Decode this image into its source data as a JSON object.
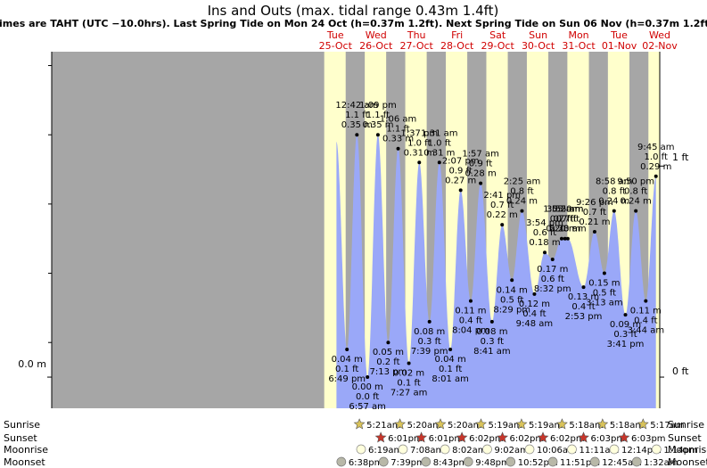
{
  "header": {
    "title": "Ins and Outs (max. tidal range 0.43m 1.4ft)",
    "subtitle": "Times are TAHT (UTC −10.0hrs). Last Spring Tide on Mon 24 Oct (h=0.37m 1.2ft). Next Spring Tide on Sun 06 Nov (h=0.37m 1.2ft)"
  },
  "days": [
    {
      "dow": "Tue",
      "date": "25-Oct"
    },
    {
      "dow": "Wed",
      "date": "26-Oct"
    },
    {
      "dow": "Thu",
      "date": "27-Oct"
    },
    {
      "dow": "Fri",
      "date": "28-Oct"
    },
    {
      "dow": "Sat",
      "date": "29-Oct"
    },
    {
      "dow": "Sun",
      "date": "30-Oct"
    },
    {
      "dow": "Mon",
      "date": "31-Oct"
    },
    {
      "dow": "Tue",
      "date": "01-Nov"
    },
    {
      "dow": "Wed",
      "date": "02-Nov"
    }
  ],
  "axes": {
    "left_tick": "0.0 m",
    "right_ticks": [
      "0 ft",
      "1 ft"
    ]
  },
  "row_labels": {
    "sunrise": "Sunrise",
    "sunset": "Sunset",
    "moonrise": "Moonrise",
    "moonset": "Moonset"
  },
  "colors": {
    "night": "#a6a6a6",
    "day": "#ffffcc",
    "water": "#9aa8f8",
    "day_text": "#d00000",
    "sun_star": "#d9c35a",
    "sunset_star": "#c8352a",
    "moonrise_fill": "#ffffdd",
    "moonset_fill": "#b8b8a8"
  },
  "chart_data": {
    "type": "area",
    "y_unit": "m",
    "ylim_m": [
      -0.045,
      0.47
    ],
    "y_ticks_m": [
      0.0
    ],
    "y_ticks_ft": [
      0,
      1
    ],
    "x_start": "2022-10-25",
    "x_unit": "days",
    "points": [
      {
        "day": "2022-10-25",
        "time": "6:49 pm",
        "m": 0.04,
        "h": 18.82,
        "labels": [
          "0.04 m",
          "0.1 ft",
          "6:49 pm"
        ]
      },
      {
        "day": "2022-10-26",
        "time": "12:42 am",
        "m": 0.35,
        "h": 0.7,
        "labels": [
          "12:42 am",
          "1.1 ft",
          "0.35 m"
        ]
      },
      {
        "day": "2022-10-26",
        "time": "6:57 am",
        "m": 0.0,
        "h": 6.95,
        "labels": [
          "0.00 m",
          "0.0 ft",
          "6:57 am"
        ]
      },
      {
        "day": "2022-10-26",
        "time": "1:09 pm",
        "m": 0.35,
        "h": 13.15,
        "labels": [
          "1:09 pm",
          "1.1 ft",
          "0.35 m"
        ]
      },
      {
        "day": "2022-10-26",
        "time": "7:13 pm",
        "m": 0.05,
        "h": 19.22,
        "labels": [
          "0.05 m",
          "0.2 ft",
          "7:13 pm"
        ]
      },
      {
        "day": "2022-10-27",
        "time": "1:06 am",
        "m": 0.33,
        "h": 1.1,
        "labels": [
          "1:06 am",
          "1.1 ft",
          "0.33 m"
        ]
      },
      {
        "day": "2022-10-27",
        "time": "7:27 am",
        "m": 0.02,
        "h": 7.45,
        "labels": [
          "0.02 m",
          "0.1 ft",
          "7:27 am"
        ]
      },
      {
        "day": "2022-10-27",
        "time": "1:37 pm",
        "m": 0.31,
        "h": 13.62,
        "labels": [
          "1:37 pm",
          "1.0 ft",
          "0.31 m"
        ]
      },
      {
        "day": "2022-10-27",
        "time": "7:39 pm",
        "m": 0.08,
        "h": 19.65,
        "labels": [
          "0.08 m",
          "0.3 ft",
          "7:39 pm"
        ]
      },
      {
        "day": "2022-10-28",
        "time": "1:31 am",
        "m": 0.31,
        "h": 1.52,
        "labels": [
          "1:31 am",
          "1.0 ft",
          "0.31 m"
        ]
      },
      {
        "day": "2022-10-28",
        "time": "8:01 am",
        "m": 0.04,
        "h": 8.02,
        "labels": [
          "0.04 m",
          "0.1 ft",
          "8:01 am"
        ]
      },
      {
        "day": "2022-10-28",
        "time": "2:07 pm",
        "m": 0.27,
        "h": 14.12,
        "labels": [
          "2:07 pm",
          "0.9 ft",
          "0.27 m"
        ]
      },
      {
        "day": "2022-10-28",
        "time": "8:04 pm",
        "m": 0.11,
        "h": 20.07,
        "labels": [
          "0.11 m",
          "0.4 ft",
          "8:04 pm"
        ]
      },
      {
        "day": "2022-10-29",
        "time": "1:57 am",
        "m": 0.28,
        "h": 1.95,
        "labels": [
          "1:57 am",
          "0.9 ft",
          "0.28 m"
        ]
      },
      {
        "day": "2022-10-29",
        "time": "8:41 am",
        "m": 0.08,
        "h": 8.68,
        "labels": [
          "0.08 m",
          "0.3 ft",
          "8:41 am"
        ]
      },
      {
        "day": "2022-10-29",
        "time": "2:41 pm",
        "m": 0.22,
        "h": 14.68,
        "labels": [
          "2:41 pm",
          "0.7 ft",
          "0.22 m"
        ]
      },
      {
        "day": "2022-10-29",
        "time": "8:29 pm",
        "m": 0.14,
        "h": 20.48,
        "labels": [
          "0.14 m",
          "0.5 ft",
          "8:29 pm"
        ]
      },
      {
        "day": "2022-10-30",
        "time": "2:25 am",
        "m": 0.24,
        "h": 2.42,
        "labels": [
          "2:25 am",
          "0.8 ft",
          "0.24 m"
        ]
      },
      {
        "day": "2022-10-30",
        "time": "9:48 am",
        "m": 0.12,
        "h": 9.8,
        "labels": [
          "0.12 m",
          "0.4 ft",
          "9:48 am"
        ]
      },
      {
        "day": "2022-10-30",
        "time": "3:54 pm",
        "m": 0.18,
        "h": 15.9,
        "labels": [
          "3:54 pm",
          "0.6 ft",
          "0.18 m"
        ]
      },
      {
        "day": "2022-10-30",
        "time": "8:32 pm",
        "m": 0.17,
        "h": 20.53,
        "labels": [
          "0.17 m",
          "0.6 ft",
          "8:32 pm"
        ]
      },
      {
        "day": "2022-10-31",
        "time": "1:55 am",
        "m": 0.2,
        "h": 1.92,
        "labels": [
          "1:55 am",
          "0.7 ft",
          "0.20 m"
        ]
      },
      {
        "day": "2022-10-31",
        "time": "3:55 am",
        "m": 0.2,
        "h": 3.92,
        "labels": [
          "3:55 am",
          "0.7 ft",
          "0.20 m"
        ]
      },
      {
        "day": "2022-10-31",
        "time": "5:33 am",
        "m": 0.2,
        "h": 5.55,
        "labels": [
          "0.20 m",
          "0.7 ft",
          "5:33 am"
        ]
      },
      {
        "day": "2022-10-31",
        "time": "2:53 pm",
        "m": 0.13,
        "h": 14.88,
        "labels": [
          "0.13 m",
          "0.4 ft",
          "2:53 pm"
        ]
      },
      {
        "day": "2022-10-31",
        "time": "9:26 pm",
        "m": 0.21,
        "h": 21.43,
        "labels": [
          "9:26 pm",
          "0.7 ft",
          "0.21 m"
        ]
      },
      {
        "day": "2022-11-01",
        "time": "3:13 am",
        "m": 0.15,
        "h": 3.22,
        "labels": [
          "0.15 m",
          "0.5 ft",
          "3:13 am"
        ]
      },
      {
        "day": "2022-11-01",
        "time": "8:58 am",
        "m": 0.24,
        "h": 8.97,
        "labels": [
          "8:58 am",
          "0.8 ft",
          "0.24 m"
        ]
      },
      {
        "day": "2022-11-01",
        "time": "3:41 pm",
        "m": 0.09,
        "h": 15.68,
        "labels": [
          "0.09 m",
          "0.3 ft",
          "3:41 pm"
        ]
      },
      {
        "day": "2022-11-01",
        "time": "9:50 pm",
        "m": 0.24,
        "h": 21.83,
        "labels": [
          "9:50 pm",
          "0.8 ft",
          "0.24 m"
        ]
      },
      {
        "day": "2022-11-02",
        "time": "3:44 am",
        "m": 0.11,
        "h": 3.73,
        "labels": [
          "0.11 m",
          "0.4 ft",
          "3:44 am"
        ]
      },
      {
        "day": "2022-11-02",
        "time": "9:45 am",
        "m": 0.29,
        "h": 9.75,
        "labels": [
          "9:45 am",
          "1.0 ft",
          "0.29 m"
        ]
      }
    ],
    "sunrise": [
      {
        "day": "2022-10-26",
        "h": 5.35,
        "label": "5:21am"
      },
      {
        "day": "2022-10-27",
        "h": 5.33,
        "label": "5:20am"
      },
      {
        "day": "2022-10-28",
        "h": 5.33,
        "label": "5:20am"
      },
      {
        "day": "2022-10-29",
        "h": 5.32,
        "label": "5:19am"
      },
      {
        "day": "2022-10-30",
        "h": 5.32,
        "label": "5:19am"
      },
      {
        "day": "2022-10-31",
        "h": 5.3,
        "label": "5:18am"
      },
      {
        "day": "2022-11-01",
        "h": 5.3,
        "label": "5:18am"
      },
      {
        "day": "2022-11-02",
        "h": 5.28,
        "label": "5:17am"
      }
    ],
    "sunset": [
      {
        "day": "2022-10-26",
        "h": 18.02,
        "label": "6:01pm"
      },
      {
        "day": "2022-10-27",
        "h": 18.02,
        "label": "6:01pm"
      },
      {
        "day": "2022-10-28",
        "h": 18.03,
        "label": "6:02pm"
      },
      {
        "day": "2022-10-29",
        "h": 18.03,
        "label": "6:02pm"
      },
      {
        "day": "2022-10-30",
        "h": 18.03,
        "label": "6:02pm"
      },
      {
        "day": "2022-10-31",
        "h": 18.05,
        "label": "6:03pm"
      },
      {
        "day": "2022-11-01",
        "h": 18.05,
        "label": "6:03pm"
      }
    ],
    "moonrise": [
      {
        "day": "2022-10-26",
        "h": 6.32,
        "label": "6:19am"
      },
      {
        "day": "2022-10-27",
        "h": 7.13,
        "label": "7:08am"
      },
      {
        "day": "2022-10-28",
        "h": 8.03,
        "label": "8:02am"
      },
      {
        "day": "2022-10-29",
        "h": 9.03,
        "label": "9:02am"
      },
      {
        "day": "2022-10-30",
        "h": 10.1,
        "label": "10:06am"
      },
      {
        "day": "2022-10-31",
        "h": 11.18,
        "label": "11:11am"
      },
      {
        "day": "2022-11-01",
        "h": 12.23,
        "label": "12:14pm"
      },
      {
        "day": "2022-11-02",
        "h": 13.23,
        "label": "1:14pm"
      }
    ],
    "moonset": [
      {
        "day": "2022-10-25",
        "h": 18.63,
        "label": "6:38pm"
      },
      {
        "day": "2022-10-26",
        "h": 19.65,
        "label": "7:39pm"
      },
      {
        "day": "2022-10-27",
        "h": 20.72,
        "label": "8:43pm"
      },
      {
        "day": "2022-10-28",
        "h": 21.8,
        "label": "9:48pm"
      },
      {
        "day": "2022-10-29",
        "h": 22.87,
        "label": "10:52pm"
      },
      {
        "day": "2022-10-30",
        "h": 23.85,
        "label": "11:51pm"
      },
      {
        "day": "2022-11-01",
        "h": 0.75,
        "label": "12:45am"
      },
      {
        "day": "2022-11-02",
        "h": 1.53,
        "label": "1:32am"
      }
    ]
  }
}
